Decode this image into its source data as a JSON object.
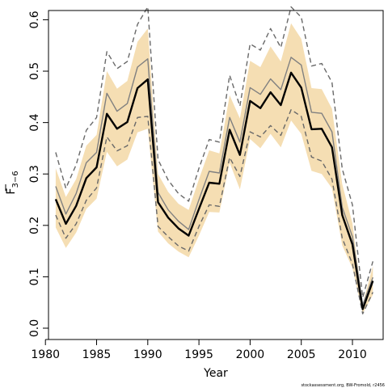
{
  "chart_data": {
    "type": "line",
    "xlabel": "Year",
    "ylabel": {
      "main": "F",
      "sub": "3−6"
    },
    "xlim": [
      1980.3,
      2013
    ],
    "ylim": [
      -0.022,
      0.618
    ],
    "xticks": [
      1980,
      1985,
      1990,
      1995,
      2000,
      2005,
      2010
    ],
    "yticks": [
      "0.0",
      "0.1",
      "0.2",
      "0.3",
      "0.4",
      "0.5",
      "0.6"
    ],
    "grid": false,
    "colors": {
      "band": "#f5deb3",
      "main_line": "#000000",
      "alt_line": "#808080",
      "dashed_line": "#696969"
    },
    "x": [
      1981,
      1982,
      1983,
      1984,
      1985,
      1986,
      1987,
      1988,
      1989,
      1990,
      1991,
      1992,
      1993,
      1994,
      1995,
      1996,
      1997,
      1998,
      1999,
      2000,
      2001,
      2002,
      2003,
      2004,
      2005,
      2006,
      2007,
      2008,
      2009,
      2010,
      2011,
      2012
    ],
    "series": [
      {
        "role": "estimate",
        "values": [
          0.251,
          0.203,
          0.238,
          0.292,
          0.313,
          0.417,
          0.388,
          0.401,
          0.467,
          0.484,
          0.245,
          0.215,
          0.194,
          0.18,
          0.232,
          0.283,
          0.281,
          0.386,
          0.337,
          0.442,
          0.428,
          0.459,
          0.434,
          0.497,
          0.468,
          0.387,
          0.388,
          0.352,
          0.22,
          0.163,
          0.037,
          0.092
        ]
      },
      {
        "role": "band_upper",
        "values": [
          0.311,
          0.255,
          0.29,
          0.355,
          0.376,
          0.5,
          0.466,
          0.481,
          0.557,
          0.583,
          0.3,
          0.265,
          0.242,
          0.23,
          0.29,
          0.346,
          0.34,
          0.453,
          0.408,
          0.52,
          0.508,
          0.548,
          0.519,
          0.593,
          0.563,
          0.467,
          0.465,
          0.427,
          0.28,
          0.204,
          0.047,
          0.121
        ]
      },
      {
        "role": "band_lower",
        "values": [
          0.196,
          0.156,
          0.186,
          0.232,
          0.252,
          0.343,
          0.315,
          0.328,
          0.381,
          0.388,
          0.188,
          0.165,
          0.149,
          0.138,
          0.18,
          0.226,
          0.225,
          0.322,
          0.27,
          0.368,
          0.35,
          0.378,
          0.352,
          0.404,
          0.378,
          0.306,
          0.3,
          0.272,
          0.161,
          0.117,
          0.029,
          0.065
        ]
      },
      {
        "role": "alt_estimate",
        "values": [
          0.276,
          0.222,
          0.262,
          0.322,
          0.342,
          0.457,
          0.422,
          0.437,
          0.508,
          0.524,
          0.264,
          0.23,
          0.208,
          0.192,
          0.25,
          0.305,
          0.302,
          0.41,
          0.362,
          0.468,
          0.455,
          0.485,
          0.464,
          0.527,
          0.512,
          0.42,
          0.418,
          0.382,
          0.235,
          0.178,
          0.045,
          0.099
        ]
      },
      {
        "role": "alt_upper",
        "values": [
          0.342,
          0.272,
          0.318,
          0.385,
          0.41,
          0.538,
          0.505,
          0.519,
          0.591,
          0.625,
          0.328,
          0.288,
          0.262,
          0.247,
          0.311,
          0.367,
          0.362,
          0.492,
          0.432,
          0.553,
          0.541,
          0.583,
          0.546,
          0.625,
          0.605,
          0.51,
          0.515,
          0.478,
          0.31,
          0.24,
          0.06,
          0.13
        ]
      },
      {
        "role": "alt_lower",
        "values": [
          0.22,
          0.175,
          0.203,
          0.249,
          0.273,
          0.372,
          0.345,
          0.355,
          0.41,
          0.412,
          0.198,
          0.178,
          0.16,
          0.15,
          0.198,
          0.24,
          0.237,
          0.332,
          0.295,
          0.382,
          0.372,
          0.394,
          0.375,
          0.425,
          0.412,
          0.333,
          0.325,
          0.29,
          0.175,
          0.125,
          0.028,
          0.07
        ]
      }
    ]
  },
  "footer": "stockassessment.org, BW-Fromold, r2456"
}
